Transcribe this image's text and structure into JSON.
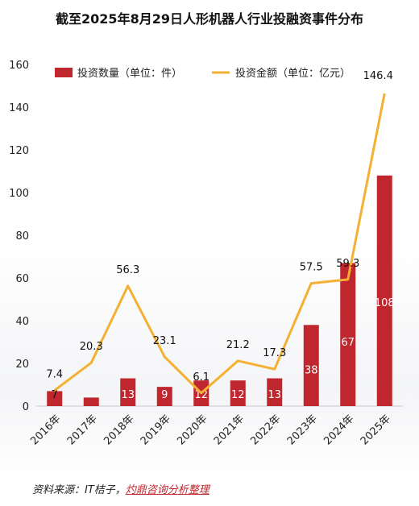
{
  "title": "截至2025年8月29日人形机器人行业投融资事件分布",
  "source": {
    "prefix": "资料来源：IT桔子，",
    "highlight": "灼鼎咨询分析整理"
  },
  "colors": {
    "bar": "#c0262d",
    "line": "#f4b030"
  },
  "chart_data": {
    "type": "bar",
    "categories": [
      "2016年",
      "2017年",
      "2018年",
      "2019年",
      "2020年",
      "2021年",
      "2022年",
      "2023年",
      "2024年",
      "2025年"
    ],
    "series": [
      {
        "name": "投资数量（单位：件）",
        "type": "bar",
        "values": [
          7,
          4,
          13,
          9,
          12,
          12,
          13,
          38,
          67,
          108
        ]
      },
      {
        "name": "投资金额（单位：亿元）",
        "type": "line",
        "values": [
          7.4,
          20.3,
          56.3,
          23.1,
          6.1,
          21.2,
          17.3,
          57.5,
          59.3,
          146.4
        ]
      }
    ],
    "bar_value_labels": [
      "7",
      "",
      "13",
      "9",
      "12",
      "12",
      "13",
      "38",
      "67",
      "108"
    ],
    "yticks": [
      0,
      20,
      40,
      60,
      80,
      100,
      120,
      140,
      160
    ],
    "ylim": [
      0,
      160
    ],
    "legend": "top-center",
    "grid": false
  }
}
